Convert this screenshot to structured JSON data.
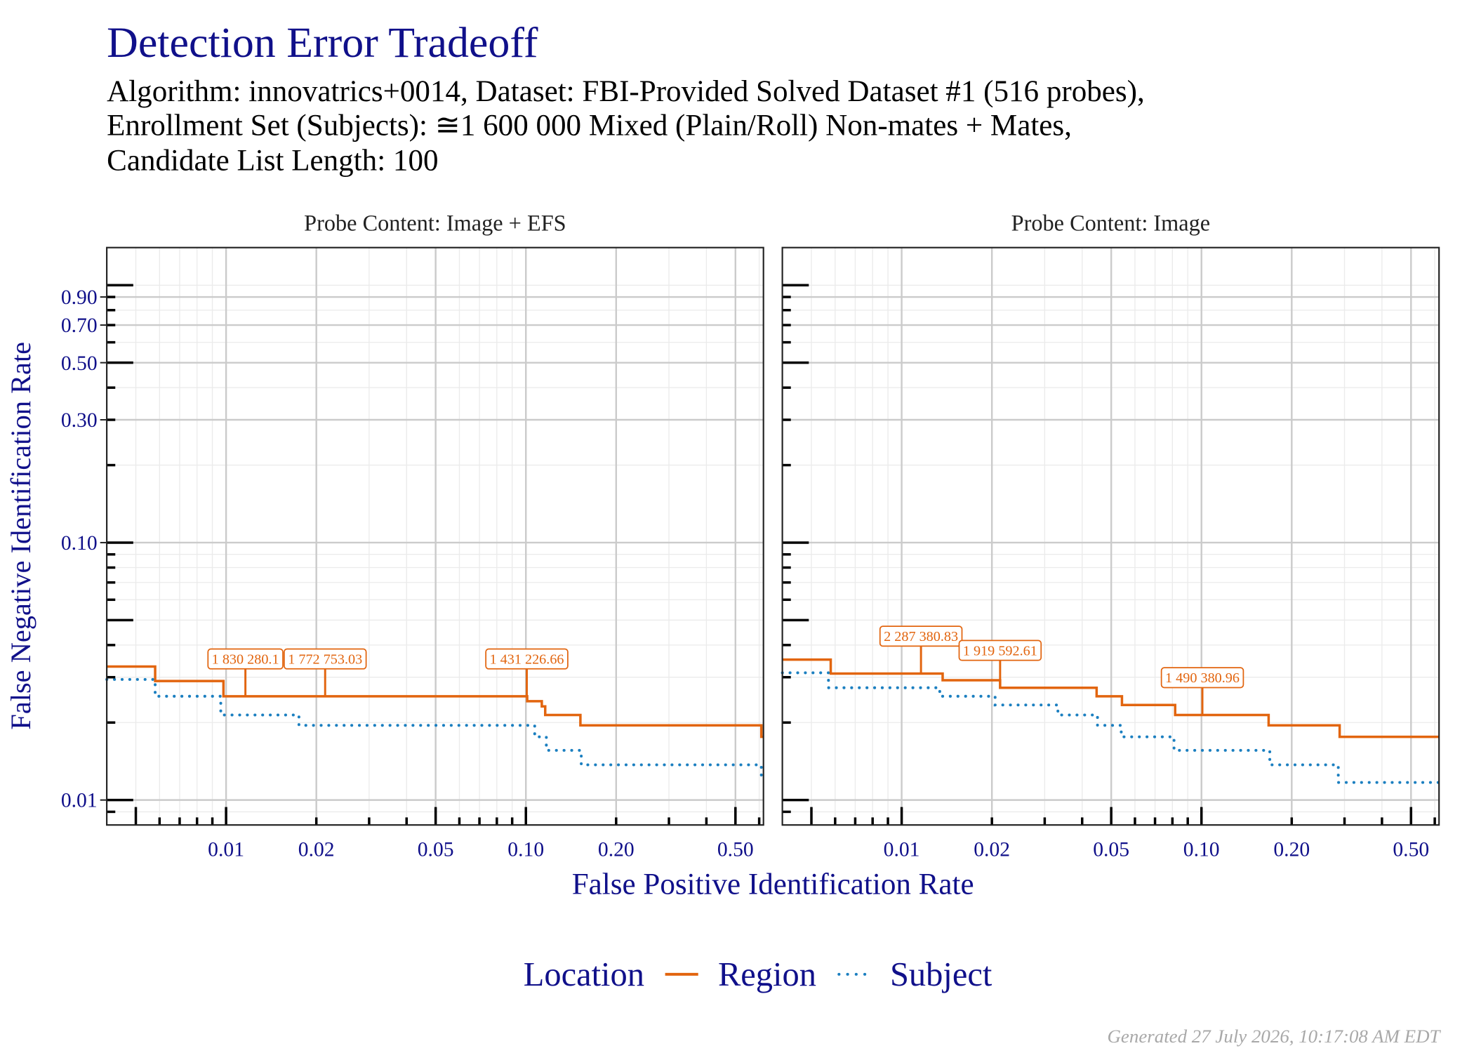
{
  "title": "Detection Error Tradeoff",
  "subtitle": [
    "Algorithm: innovatrics+0014, Dataset: FBI-Provided Solved Dataset #1 (516 probes),",
    "Enrollment Set (Subjects): ≅1 600 000 Mixed (Plain/Roll) Non-mates + Mates,",
    "Candidate List Length: 100"
  ],
  "x_label": "False Positive Identification Rate",
  "y_label": "False Negative Identification Rate",
  "legend_title": "Location",
  "legend_position": "bottom",
  "footer": "Generated 27 July 2026, 10:17:08 AM EDT",
  "chart_data": [
    {
      "type": "line",
      "title": "Probe Content: Image + EFS",
      "log_x": true,
      "log_y": true,
      "grid": true,
      "xlim": [
        0.004,
        0.62
      ],
      "ylim": [
        0.008,
        1.4
      ],
      "xticks": [
        0.01,
        0.02,
        0.05,
        {
          "value": 0.1,
          "label": "0.10"
        },
        {
          "value": 0.2,
          "label": "0.20"
        },
        {
          "value": 0.5,
          "label": "0.50"
        }
      ],
      "yticks": [
        0.01,
        {
          "value": 0.1,
          "label": "0.10"
        },
        {
          "value": 0.3,
          "label": "0.30"
        },
        {
          "value": 0.5,
          "label": "0.50"
        },
        {
          "value": 0.7,
          "label": "0.70"
        },
        {
          "value": 0.9,
          "label": "0.90"
        }
      ],
      "xminor": [
        0.005,
        0.006,
        0.007,
        0.008,
        0.009,
        0.03,
        0.04,
        0.06,
        0.07,
        0.08,
        0.09,
        0.3,
        0.4,
        0.6
      ],
      "yminor": [
        0.009,
        0.02,
        0.03,
        0.04,
        0.05,
        0.06,
        0.07,
        0.08,
        0.09,
        0.2,
        0.4,
        0.6,
        0.8,
        1
      ],
      "series": [
        {
          "name": "Region",
          "color": "#e2650f",
          "style": "solid",
          "x": [
            0.004,
            0.0058,
            0.0058,
            0.0098,
            0.0098,
            0.101,
            0.101,
            0.113,
            0.113,
            0.116,
            0.116,
            0.152,
            0.152,
            0.61,
            0.61,
            0.62
          ],
          "values": [
            0.033,
            0.033,
            0.029,
            0.029,
            0.0253,
            0.0253,
            0.0242,
            0.0242,
            0.0231,
            0.0231,
            0.0214,
            0.0214,
            0.0195,
            0.0195,
            0.0176,
            0.0176
          ]
        },
        {
          "name": "Subject",
          "color": "#1b7fc0",
          "style": "dotted",
          "x": [
            0.004,
            0.0058,
            0.0058,
            0.0096,
            0.0096,
            0.0175,
            0.0175,
            0.107,
            0.107,
            0.117,
            0.117,
            0.153,
            0.153,
            0.61,
            0.61,
            0.62
          ],
          "values": [
            0.0294,
            0.0294,
            0.0253,
            0.0253,
            0.0214,
            0.0214,
            0.0195,
            0.0195,
            0.0176,
            0.0176,
            0.0156,
            0.0156,
            0.0137,
            0.0137,
            0.0124,
            0.0124
          ]
        }
      ],
      "annotations": [
        {
          "x": 0.0116,
          "y": 0.0253,
          "label": "1 830 280.1"
        },
        {
          "x": 0.0214,
          "y": 0.0253,
          "label": "1 772 753.03"
        },
        {
          "x": 0.1007,
          "y": 0.0253,
          "label": "1 431 226.66"
        }
      ]
    },
    {
      "type": "line",
      "title": "Probe Content: Image",
      "log_x": true,
      "log_y": true,
      "grid": true,
      "xlim": [
        0.004,
        0.62
      ],
      "ylim": [
        0.008,
        1.4
      ],
      "xticks": [
        0.01,
        0.02,
        0.05,
        {
          "value": 0.1,
          "label": "0.10"
        },
        {
          "value": 0.2,
          "label": "0.20"
        },
        {
          "value": 0.5,
          "label": "0.50"
        }
      ],
      "yticks": [
        0.01,
        0.1,
        0.3,
        0.5,
        0.7,
        0.9
      ],
      "xminor": [
        0.005,
        0.006,
        0.007,
        0.008,
        0.009,
        0.03,
        0.04,
        0.06,
        0.07,
        0.08,
        0.09,
        0.3,
        0.4,
        0.6
      ],
      "yminor": [
        0.009,
        0.02,
        0.03,
        0.04,
        0.05,
        0.06,
        0.07,
        0.08,
        0.09,
        0.2,
        0.4,
        0.6,
        0.8,
        1
      ],
      "series": [
        {
          "name": "Region",
          "color": "#e2650f",
          "style": "solid",
          "x": [
            0.004,
            0.0058,
            0.0058,
            0.0137,
            0.0137,
            0.0213,
            0.0213,
            0.0447,
            0.0447,
            0.0543,
            0.0543,
            0.0817,
            0.0817,
            0.1675,
            0.1675,
            0.289,
            0.289,
            0.62
          ],
          "values": [
            0.0351,
            0.0351,
            0.031,
            0.031,
            0.0292,
            0.0292,
            0.0273,
            0.0273,
            0.0253,
            0.0253,
            0.0234,
            0.0234,
            0.0214,
            0.0214,
            0.0195,
            0.0195,
            0.0176,
            0.0176
          ]
        },
        {
          "name": "Subject",
          "color": "#1b7fc0",
          "style": "dotted",
          "x": [
            0.004,
            0.0057,
            0.0057,
            0.0134,
            0.0134,
            0.0205,
            0.0205,
            0.0332,
            0.0332,
            0.045,
            0.045,
            0.054,
            0.054,
            0.081,
            0.081,
            0.169,
            0.169,
            0.286,
            0.286,
            0.62
          ],
          "values": [
            0.0312,
            0.0312,
            0.0273,
            0.0273,
            0.0253,
            0.0253,
            0.0234,
            0.0234,
            0.0214,
            0.0214,
            0.0195,
            0.0195,
            0.0176,
            0.0176,
            0.0156,
            0.0156,
            0.0137,
            0.0137,
            0.0117,
            0.0117
          ]
        }
      ],
      "annotations": [
        {
          "x": 0.0116,
          "y": 0.031,
          "label": "2 287 380.83"
        },
        {
          "x": 0.0213,
          "y": 0.0273,
          "label": "1 919 592.61"
        },
        {
          "x": 0.1007,
          "y": 0.0214,
          "label": "1 490 380.96"
        }
      ]
    }
  ]
}
